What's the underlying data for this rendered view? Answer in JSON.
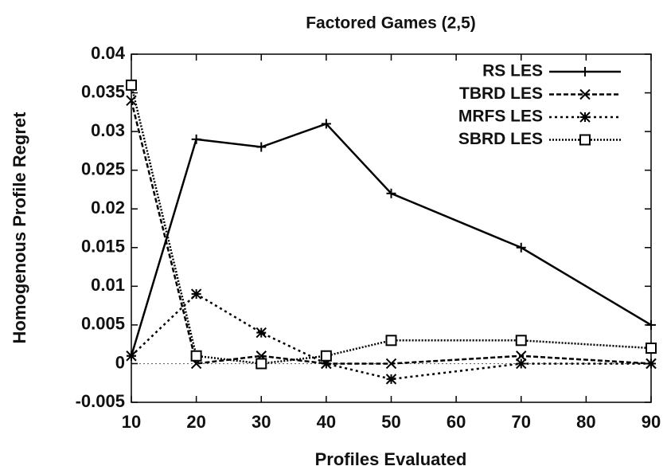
{
  "chart_data": {
    "type": "line",
    "title": "Factored Games (2,5)",
    "xlabel": "Profiles Evaluated",
    "ylabel": "Homogenous Profile Regret",
    "x": [
      10,
      20,
      30,
      40,
      50,
      70,
      90
    ],
    "series": [
      {
        "name": "RS LES",
        "color": "#000000",
        "dash": "solid",
        "marker": "plus",
        "values": [
          0.001,
          0.029,
          0.028,
          0.031,
          0.022,
          0.015,
          0.005
        ]
      },
      {
        "name": "TBRD LES",
        "color": "#000000",
        "dash": "dashed",
        "marker": "cross",
        "values": [
          0.034,
          0,
          0.001,
          0,
          0,
          0.001,
          0
        ]
      },
      {
        "name": "MRFS LES",
        "color": "#000000",
        "dash": "dotted",
        "marker": "star",
        "values": [
          0.001,
          0.009,
          0.004,
          0,
          -0.002,
          0,
          0
        ]
      },
      {
        "name": "SBRD LES",
        "color": "#000000",
        "dash": "dense-dotted",
        "marker": "square",
        "values": [
          0.036,
          0.001,
          0,
          0.001,
          0.003,
          0.003,
          0.002
        ]
      }
    ],
    "xlim": [
      10,
      90
    ],
    "xticks": [
      10,
      20,
      30,
      40,
      50,
      60,
      70,
      80,
      90
    ],
    "ylim": [
      -0.005,
      0.04
    ],
    "yticks": [
      -0.005,
      0,
      0.005,
      0.01,
      0.015,
      0.02,
      0.025,
      0.03,
      0.035,
      0.04
    ],
    "legend": "top-right",
    "zero_line": true
  }
}
